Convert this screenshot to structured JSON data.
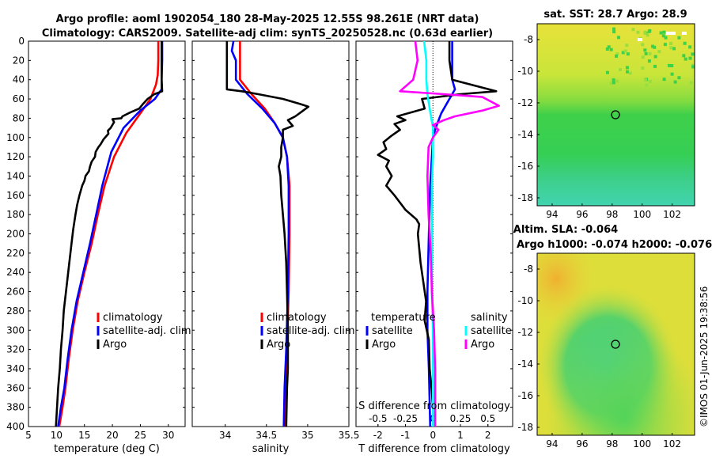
{
  "title_line1": "Argo profile: aoml 1902054_180 28-May-2025 12.55S 98.261E (NRT data)",
  "title_line2": "Climatology: CARS2009. Satellite-adj clim: synTS_20250528.nc (0.63d earlier)",
  "sst_title": "sat. SST: 28.7 Argo: 28.9",
  "sla_title_line1": "Altim. SLA: -0.064",
  "sla_title_line2": "Argo h1000: -0.074 h2000: -0.076",
  "watermark": "©IMOS 01-Jun-2025 19:38:56",
  "colors": {
    "climatology": "#ff0000",
    "satellite": "#0000ff",
    "argo": "#000000",
    "sal_satellite": "#00ffff",
    "sal_argo": "#ff00ff"
  },
  "chart_data": [
    {
      "type": "line",
      "name": "temperature-panel",
      "xlabel": "temperature (deg C)",
      "ylabel": "",
      "xlim": [
        5,
        33
      ],
      "ylim": [
        400,
        0
      ],
      "xticks": [
        5,
        10,
        15,
        20,
        25,
        30
      ],
      "yticks": [
        0,
        20,
        40,
        60,
        80,
        100,
        120,
        140,
        160,
        180,
        200,
        220,
        240,
        260,
        280,
        300,
        320,
        340,
        360,
        380,
        400
      ],
      "legend": [
        "climatology",
        "satellite-adj. clim",
        "Argo"
      ],
      "series": [
        {
          "name": "climatology",
          "color": "#ff0000",
          "points": [
            [
              28.2,
              0
            ],
            [
              28.2,
              20
            ],
            [
              28.1,
              35
            ],
            [
              27.8,
              45
            ],
            [
              26.8,
              60
            ],
            [
              25,
              75
            ],
            [
              22.5,
              95
            ],
            [
              20.3,
              120
            ],
            [
              18.6,
              150
            ],
            [
              17.4,
              180
            ],
            [
              16.3,
              210
            ],
            [
              15,
              240
            ],
            [
              13.8,
              270
            ],
            [
              12.9,
              300
            ],
            [
              12.2,
              330
            ],
            [
              11.6,
              360
            ],
            [
              11.1,
              380
            ],
            [
              10.5,
              400
            ]
          ]
        },
        {
          "name": "satellite-adj. clim",
          "color": "#0000ff",
          "points": [
            [
              28.9,
              0
            ],
            [
              28.9,
              20
            ],
            [
              28.8,
              40
            ],
            [
              28.8,
              50
            ],
            [
              27.6,
              60
            ],
            [
              25,
              72
            ],
            [
              22,
              90
            ],
            [
              19.8,
              115
            ],
            [
              18.2,
              150
            ],
            [
              17.1,
              180
            ],
            [
              16,
              210
            ],
            [
              14.8,
              240
            ],
            [
              13.6,
              270
            ],
            [
              12.7,
              300
            ],
            [
              12,
              330
            ],
            [
              11.4,
              360
            ],
            [
              10.8,
              380
            ],
            [
              10.3,
              400
            ]
          ]
        },
        {
          "name": "Argo",
          "color": "#000000",
          "points": [
            [
              28.8,
              0
            ],
            [
              28.8,
              20
            ],
            [
              28.8,
              40
            ],
            [
              28.9,
              52
            ],
            [
              27.5,
              55
            ],
            [
              26.3,
              60
            ],
            [
              25.5,
              65
            ],
            [
              24.8,
              70
            ],
            [
              23.2,
              74
            ],
            [
              21.8,
              78
            ],
            [
              21.6,
              80
            ],
            [
              20,
              81
            ],
            [
              20.3,
              84
            ],
            [
              19.7,
              90
            ],
            [
              19.2,
              93
            ],
            [
              19.3,
              96
            ],
            [
              18.4,
              102
            ],
            [
              17.9,
              107
            ],
            [
              17.5,
              110
            ],
            [
              17,
              115
            ],
            [
              16.9,
              120
            ],
            [
              16.3,
              125
            ],
            [
              16,
              130
            ],
            [
              15.8,
              135
            ],
            [
              15.2,
              140
            ],
            [
              15,
              145
            ],
            [
              14.6,
              150
            ],
            [
              14.1,
              160
            ],
            [
              13.7,
              170
            ],
            [
              13.4,
              180
            ],
            [
              13,
              195
            ],
            [
              12.7,
              210
            ],
            [
              12.5,
              220
            ],
            [
              12.2,
              235
            ],
            [
              12,
              245
            ],
            [
              11.7,
              260
            ],
            [
              11.5,
              270
            ],
            [
              11.3,
              280
            ],
            [
              11.1,
              300
            ],
            [
              10.8,
              320
            ],
            [
              10.6,
              340
            ],
            [
              10.3,
              360
            ],
            [
              10.1,
              380
            ],
            [
              9.9,
              400
            ]
          ]
        }
      ]
    },
    {
      "type": "line",
      "name": "salinity-panel",
      "xlabel": "salinity",
      "ylabel": "",
      "xlim": [
        33.6,
        35.5
      ],
      "ylim": [
        400,
        0
      ],
      "xticks": [
        34,
        34.5,
        35,
        35.5
      ],
      "legend": [
        "climatology",
        "satellite-adj. clim",
        "Argo"
      ],
      "series": [
        {
          "name": "climatology",
          "color": "#ff0000",
          "points": [
            [
              34.18,
              0
            ],
            [
              34.18,
              20
            ],
            [
              34.18,
              40
            ],
            [
              34.32,
              55
            ],
            [
              34.48,
              70
            ],
            [
              34.6,
              85
            ],
            [
              34.7,
              100
            ],
            [
              34.75,
              120
            ],
            [
              34.78,
              150
            ],
            [
              34.78,
              200
            ],
            [
              34.77,
              260
            ],
            [
              34.75,
              320
            ],
            [
              34.73,
              360
            ],
            [
              34.72,
              400
            ]
          ]
        },
        {
          "name": "satellite-adj. clim",
          "color": "#0000ff",
          "points": [
            [
              34.1,
              0
            ],
            [
              34.08,
              10
            ],
            [
              34.13,
              20
            ],
            [
              34.13,
              40
            ],
            [
              34.27,
              55
            ],
            [
              34.45,
              70
            ],
            [
              34.6,
              85
            ],
            [
              34.7,
              100
            ],
            [
              34.75,
              120
            ],
            [
              34.77,
              150
            ],
            [
              34.77,
              200
            ],
            [
              34.76,
              260
            ],
            [
              34.74,
              320
            ],
            [
              34.72,
              360
            ],
            [
              34.71,
              400
            ]
          ]
        },
        {
          "name": "Argo",
          "color": "#000000",
          "points": [
            [
              34.02,
              0
            ],
            [
              34.02,
              20
            ],
            [
              34.02,
              40
            ],
            [
              34.02,
              50
            ],
            [
              34.2,
              52
            ],
            [
              34.4,
              55
            ],
            [
              34.7,
              60
            ],
            [
              34.9,
              65
            ],
            [
              35.01,
              68
            ],
            [
              34.93,
              73
            ],
            [
              34.85,
              78
            ],
            [
              34.76,
              82
            ],
            [
              34.82,
              88
            ],
            [
              34.7,
              92
            ],
            [
              34.7,
              100
            ],
            [
              34.68,
              110
            ],
            [
              34.68,
              120
            ],
            [
              34.65,
              130
            ],
            [
              34.67,
              140
            ],
            [
              34.68,
              160
            ],
            [
              34.7,
              180
            ],
            [
              34.72,
              200
            ],
            [
              34.74,
              230
            ],
            [
              34.75,
              260
            ],
            [
              34.76,
              300
            ],
            [
              34.76,
              340
            ],
            [
              34.75,
              360
            ],
            [
              34.74,
              400
            ]
          ]
        }
      ]
    },
    {
      "type": "line",
      "name": "difference-panel",
      "xlabel": "T difference from climatology",
      "x2label": "S difference from climatology",
      "xlim": [
        -2.8,
        2.9
      ],
      "x2lim": [
        -0.7,
        0.725
      ],
      "ylim": [
        400,
        0
      ],
      "xticks": [
        -2,
        -1,
        0,
        1,
        2
      ],
      "x2ticks": [
        -0.5,
        -0.25,
        0,
        0.25,
        0.5
      ],
      "legend_temperature_title": "temperature",
      "legend_salinity_title": "salinity",
      "legend_temperature": [
        "satellite",
        "Argo"
      ],
      "legend_salinity": [
        "satellite",
        "Argo"
      ],
      "series": [
        {
          "name": "T satellite",
          "axis": "T",
          "color": "#0000ff",
          "points": [
            [
              0.7,
              0
            ],
            [
              0.7,
              40
            ],
            [
              0.8,
              50
            ],
            [
              0.6,
              60
            ],
            [
              0.3,
              75
            ],
            [
              0.1,
              90
            ],
            [
              0,
              100
            ],
            [
              -0.1,
              150
            ],
            [
              -0.15,
              200
            ],
            [
              -0.2,
              260
            ],
            [
              -0.2,
              300
            ],
            [
              -0.15,
              340
            ],
            [
              -0.1,
              400
            ]
          ]
        },
        {
          "name": "T Argo",
          "axis": "T",
          "color": "#000000",
          "points": [
            [
              0.6,
              0
            ],
            [
              0.6,
              20
            ],
            [
              0.7,
              40
            ],
            [
              2.3,
              52
            ],
            [
              1,
              55
            ],
            [
              -0.4,
              60
            ],
            [
              -0.3,
              70
            ],
            [
              -1.3,
              78
            ],
            [
              -1,
              82
            ],
            [
              -1.4,
              86
            ],
            [
              -1.2,
              92
            ],
            [
              -1.5,
              98
            ],
            [
              -1.8,
              105
            ],
            [
              -1.7,
              112
            ],
            [
              -2,
              118
            ],
            [
              -1.6,
              124
            ],
            [
              -1.7,
              130
            ],
            [
              -1.5,
              140
            ],
            [
              -1.7,
              150
            ],
            [
              -1.4,
              160
            ],
            [
              -1,
              175
            ],
            [
              -0.6,
              185
            ],
            [
              -0.5,
              190
            ],
            [
              -0.55,
              200
            ],
            [
              -0.5,
              215
            ],
            [
              -0.45,
              230
            ],
            [
              -0.35,
              250
            ],
            [
              -0.25,
              270
            ],
            [
              -0.3,
              290
            ],
            [
              -0.15,
              310
            ],
            [
              -0.12,
              340
            ],
            [
              -0.05,
              360
            ],
            [
              0,
              380
            ],
            [
              0,
              400
            ]
          ]
        },
        {
          "name": "S satellite",
          "axis": "S",
          "color": "#00ffff",
          "points": [
            [
              -0.08,
              0
            ],
            [
              -0.06,
              20
            ],
            [
              -0.06,
              40
            ],
            [
              -0.05,
              55
            ],
            [
              -0.03,
              70
            ],
            [
              0,
              90
            ],
            [
              0,
              120
            ],
            [
              -0.01,
              150
            ],
            [
              -0.01,
              200
            ],
            [
              -0.01,
              260
            ],
            [
              0,
              300
            ],
            [
              0,
              340
            ],
            [
              0,
              400
            ]
          ]
        },
        {
          "name": "S Argo",
          "axis": "S",
          "color": "#ff00ff",
          "points": [
            [
              -0.16,
              0
            ],
            [
              -0.14,
              20
            ],
            [
              -0.18,
              40
            ],
            [
              -0.3,
              52
            ],
            [
              0.1,
              55
            ],
            [
              0.45,
              58
            ],
            [
              0.6,
              67
            ],
            [
              0.45,
              72
            ],
            [
              0.2,
              78
            ],
            [
              0.1,
              82
            ],
            [
              0,
              87
            ],
            [
              0.05,
              92
            ],
            [
              0,
              100
            ],
            [
              -0.04,
              110
            ],
            [
              -0.05,
              140
            ],
            [
              -0.04,
              180
            ],
            [
              -0.02,
              220
            ],
            [
              -0.01,
              260
            ],
            [
              0.01,
              300
            ],
            [
              0.02,
              340
            ],
            [
              0.02,
              400
            ]
          ]
        }
      ]
    },
    {
      "type": "heatmap",
      "name": "sst-map",
      "title": "sat. SST: 28.7 Argo: 28.9",
      "xlim": [
        93,
        103.5
      ],
      "ylim": [
        -18.5,
        -7
      ],
      "xticks": [
        94,
        96,
        98,
        100,
        102
      ],
      "yticks": [
        -8,
        -10,
        -12,
        -14,
        -16,
        -18
      ],
      "marker": [
        98.26,
        -12.55
      ]
    },
    {
      "type": "heatmap",
      "name": "sla-map",
      "title": "Altim. SLA: -0.064",
      "xlim": [
        93,
        103.5
      ],
      "ylim": [
        -18.5,
        -7
      ],
      "xticks": [
        94,
        96,
        98,
        100,
        102
      ],
      "yticks": [
        -8,
        -10,
        -12,
        -14,
        -16,
        -18
      ],
      "marker": [
        98.26,
        -12.55
      ]
    }
  ]
}
